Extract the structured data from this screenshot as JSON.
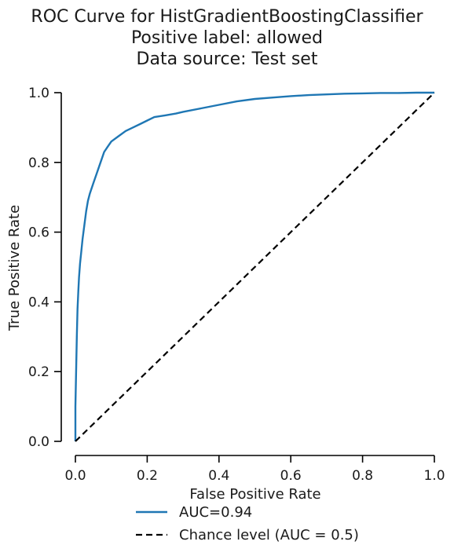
{
  "chart_data": {
    "type": "line",
    "title_lines": [
      "ROC Curve for HistGradientBoostingClassifier",
      "Positive label: allowed",
      "Data source: Test set"
    ],
    "xlabel": "False Positive Rate",
    "ylabel": "True Positive Rate",
    "xlim": [
      0,
      1
    ],
    "ylim": [
      0,
      1
    ],
    "xticks": [
      0.0,
      0.2,
      0.4,
      0.6,
      0.8,
      1.0
    ],
    "yticks": [
      0.0,
      0.2,
      0.4,
      0.6,
      0.8,
      1.0
    ],
    "xtick_labels": [
      "0.0",
      "0.2",
      "0.4",
      "0.6",
      "0.8",
      "1.0"
    ],
    "ytick_labels": [
      "0.0",
      "0.2",
      "0.4",
      "0.6",
      "0.8",
      "1.0"
    ],
    "grid": false,
    "legend_position": "below plot",
    "series": [
      {
        "name": "AUC=0.94",
        "color": "#1f77b4",
        "style": "solid",
        "x": [
          0.0,
          0.0,
          0.002,
          0.004,
          0.006,
          0.008,
          0.01,
          0.013,
          0.016,
          0.02,
          0.025,
          0.03,
          0.035,
          0.04,
          0.05,
          0.06,
          0.07,
          0.08,
          0.09,
          0.1,
          0.12,
          0.14,
          0.16,
          0.18,
          0.2,
          0.22,
          0.25,
          0.28,
          0.3,
          0.35,
          0.4,
          0.45,
          0.5,
          0.55,
          0.6,
          0.65,
          0.7,
          0.75,
          0.8,
          0.85,
          0.9,
          0.95,
          1.0
        ],
        "y": [
          0.0,
          0.1,
          0.2,
          0.3,
          0.38,
          0.43,
          0.47,
          0.51,
          0.54,
          0.58,
          0.62,
          0.66,
          0.69,
          0.71,
          0.74,
          0.77,
          0.8,
          0.83,
          0.845,
          0.86,
          0.875,
          0.89,
          0.9,
          0.91,
          0.92,
          0.93,
          0.935,
          0.94,
          0.945,
          0.955,
          0.965,
          0.975,
          0.982,
          0.986,
          0.99,
          0.993,
          0.995,
          0.997,
          0.998,
          0.999,
          0.999,
          1.0,
          1.0
        ]
      },
      {
        "name": "Chance level (AUC = 0.5)",
        "color": "#000000",
        "style": "dashed",
        "x": [
          0,
          1
        ],
        "y": [
          0,
          1
        ]
      }
    ]
  }
}
